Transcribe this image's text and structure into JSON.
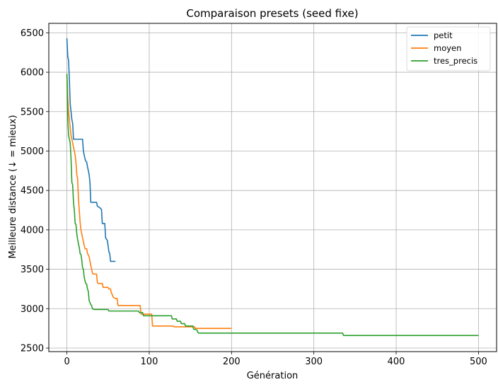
{
  "chart_data": {
    "type": "line",
    "title": "Comparaison presets (seed fixe)",
    "xlabel": "Génération",
    "ylabel": "Meilleure distance (↓ = mieux)",
    "xlim": [
      -22,
      522
    ],
    "ylim": [
      2455,
      6620
    ],
    "xticks": [
      0,
      100,
      200,
      300,
      400,
      500
    ],
    "yticks": [
      2500,
      3000,
      3500,
      4000,
      4500,
      5000,
      5500,
      6000,
      6500
    ],
    "grid": true,
    "legend_position": "top-right",
    "series": [
      {
        "name": "petit",
        "color": "#1f77b4",
        "points": [
          [
            0,
            6430
          ],
          [
            1,
            6200
          ],
          [
            2,
            6150
          ],
          [
            3,
            5900
          ],
          [
            4,
            5600
          ],
          [
            5,
            5500
          ],
          [
            6,
            5400
          ],
          [
            7,
            5350
          ],
          [
            8,
            5150
          ],
          [
            19,
            5150
          ],
          [
            20,
            5000
          ],
          [
            21,
            4950
          ],
          [
            22,
            4900
          ],
          [
            23,
            4870
          ],
          [
            24,
            4860
          ],
          [
            25,
            4800
          ],
          [
            26,
            4750
          ],
          [
            27,
            4700
          ],
          [
            28,
            4600
          ],
          [
            29,
            4350
          ],
          [
            36,
            4350
          ],
          [
            37,
            4300
          ],
          [
            40,
            4280
          ],
          [
            42,
            4260
          ],
          [
            43,
            4080
          ],
          [
            46,
            4080
          ],
          [
            47,
            3900
          ],
          [
            48,
            3880
          ],
          [
            49,
            3870
          ],
          [
            50,
            3800
          ],
          [
            51,
            3720
          ],
          [
            52,
            3700
          ],
          [
            53,
            3600
          ],
          [
            59,
            3600
          ]
        ]
      },
      {
        "name": "moyen",
        "color": "#ff7f0e",
        "points": [
          [
            0,
            5980
          ],
          [
            1,
            5700
          ],
          [
            2,
            5500
          ],
          [
            3,
            5400
          ],
          [
            4,
            5300
          ],
          [
            5,
            5200
          ],
          [
            6,
            5150
          ],
          [
            7,
            5100
          ],
          [
            8,
            5050
          ],
          [
            9,
            5000
          ],
          [
            10,
            4950
          ],
          [
            11,
            4850
          ],
          [
            12,
            4700
          ],
          [
            13,
            4650
          ],
          [
            14,
            4400
          ],
          [
            15,
            4250
          ],
          [
            16,
            4100
          ],
          [
            17,
            4000
          ],
          [
            18,
            3950
          ],
          [
            19,
            3900
          ],
          [
            20,
            3850
          ],
          [
            21,
            3800
          ],
          [
            22,
            3760
          ],
          [
            24,
            3760
          ],
          [
            25,
            3700
          ],
          [
            26,
            3680
          ],
          [
            27,
            3660
          ],
          [
            28,
            3600
          ],
          [
            29,
            3550
          ],
          [
            30,
            3500
          ],
          [
            31,
            3450
          ],
          [
            32,
            3440
          ],
          [
            36,
            3440
          ],
          [
            37,
            3330
          ],
          [
            38,
            3320
          ],
          [
            43,
            3320
          ],
          [
            44,
            3270
          ],
          [
            50,
            3270
          ],
          [
            51,
            3250
          ],
          [
            53,
            3250
          ],
          [
            54,
            3200
          ],
          [
            55,
            3180
          ],
          [
            56,
            3150
          ],
          [
            57,
            3140
          ],
          [
            59,
            3130
          ],
          [
            61,
            3130
          ],
          [
            62,
            3040
          ],
          [
            78,
            3040
          ],
          [
            89,
            3040
          ],
          [
            90,
            2930
          ],
          [
            103,
            2930
          ],
          [
            104,
            2780
          ],
          [
            129,
            2780
          ],
          [
            130,
            2770
          ],
          [
            155,
            2770
          ],
          [
            156,
            2750
          ],
          [
            200,
            2750
          ]
        ]
      },
      {
        "name": "tres_precis",
        "color": "#2ca02c",
        "points": [
          [
            0,
            5980
          ],
          [
            1,
            5400
          ],
          [
            2,
            5200
          ],
          [
            3,
            5150
          ],
          [
            4,
            5100
          ],
          [
            5,
            4900
          ],
          [
            6,
            4600
          ],
          [
            7,
            4570
          ],
          [
            8,
            4350
          ],
          [
            9,
            4250
          ],
          [
            10,
            4080
          ],
          [
            11,
            4070
          ],
          [
            12,
            3950
          ],
          [
            13,
            3880
          ],
          [
            14,
            3820
          ],
          [
            15,
            3780
          ],
          [
            16,
            3700
          ],
          [
            17,
            3690
          ],
          [
            18,
            3620
          ],
          [
            19,
            3520
          ],
          [
            20,
            3500
          ],
          [
            21,
            3400
          ],
          [
            22,
            3350
          ],
          [
            23,
            3320
          ],
          [
            24,
            3310
          ],
          [
            25,
            3250
          ],
          [
            26,
            3220
          ],
          [
            27,
            3100
          ],
          [
            28,
            3080
          ],
          [
            29,
            3050
          ],
          [
            30,
            3040
          ],
          [
            31,
            3000
          ],
          [
            33,
            2990
          ],
          [
            50,
            2990
          ],
          [
            51,
            2970
          ],
          [
            87,
            2970
          ],
          [
            88,
            2950
          ],
          [
            92,
            2950
          ],
          [
            93,
            2910
          ],
          [
            127,
            2910
          ],
          [
            128,
            2870
          ],
          [
            133,
            2870
          ],
          [
            134,
            2840
          ],
          [
            138,
            2840
          ],
          [
            139,
            2810
          ],
          [
            143,
            2810
          ],
          [
            144,
            2780
          ],
          [
            153,
            2780
          ],
          [
            154,
            2740
          ],
          [
            158,
            2730
          ],
          [
            159,
            2700
          ],
          [
            160,
            2690
          ],
          [
            335,
            2690
          ],
          [
            336,
            2660
          ],
          [
            500,
            2660
          ]
        ]
      }
    ]
  }
}
